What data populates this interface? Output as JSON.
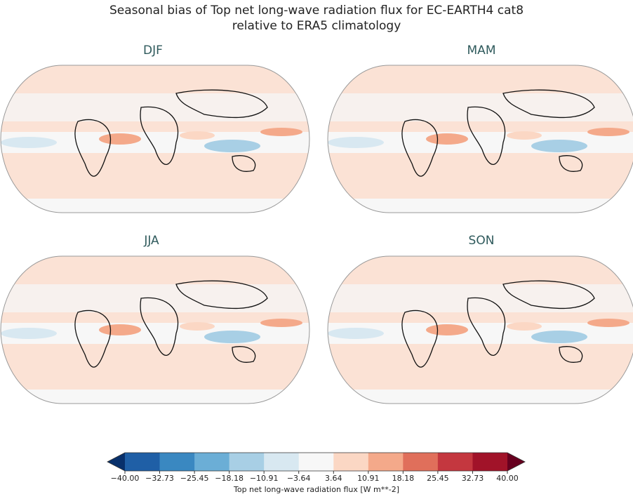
{
  "title_lines": [
    "Seasonal bias of Top net long-wave radiation flux for EC-EARTH4 cat8",
    "relative to ERA5 climatology"
  ],
  "panels": [
    "DJF",
    "MAM",
    "JJA",
    "SON"
  ],
  "colorbar": {
    "label": "Top net long-wave radiation flux [W m**-2]",
    "lim": [
      -40,
      40
    ],
    "ticks": [
      {
        "value": -40,
        "label": "−40.00"
      },
      {
        "value": -32.73,
        "label": "−32.73"
      },
      {
        "value": -25.45,
        "label": "−25.45"
      },
      {
        "value": -18.18,
        "label": "−18.18"
      },
      {
        "value": -10.91,
        "label": "−10.91"
      },
      {
        "value": -3.64,
        "label": "−3.64"
      },
      {
        "value": 3.64,
        "label": "3.64"
      },
      {
        "value": 10.91,
        "label": "10.91"
      },
      {
        "value": 18.18,
        "label": "18.18"
      },
      {
        "value": 25.45,
        "label": "25.45"
      },
      {
        "value": 32.73,
        "label": "32.73"
      },
      {
        "value": 40,
        "label": "40.00"
      }
    ],
    "colors": [
      "#1f5fa6",
      "#3a88c1",
      "#6baed6",
      "#a8cfe5",
      "#d8e8f1",
      "#f7f7f7",
      "#fbd7c4",
      "#f4a98a",
      "#e06f5b",
      "#c4373f",
      "#a11329"
    ],
    "extend_colors": [
      "#08306b",
      "#67001f"
    ]
  }
}
